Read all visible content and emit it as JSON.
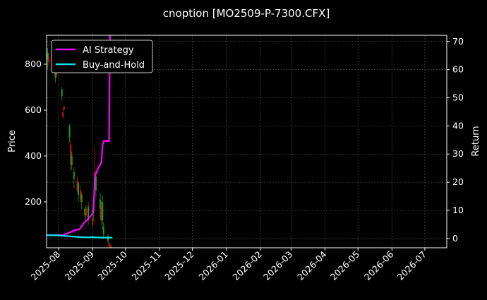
{
  "chart_data": {
    "type": "candlestick+line",
    "title": "cnoption [MO2509-P-7300.CFX]",
    "ylabel_left": "Price",
    "ylabel_right": "Return",
    "xlim": [
      "2025-07-21",
      "2026-07-21"
    ],
    "ylim_left": [
      0,
      926
    ],
    "ylim_right": [
      -3.3,
      72.2
    ],
    "x_ticks": [
      "2025-08",
      "2025-09",
      "2025-10",
      "2025-11",
      "2025-12",
      "2026-01",
      "2026-02",
      "2026-03",
      "2026-04",
      "2026-05",
      "2026-06",
      "2026-07"
    ],
    "y_ticks_left": [
      200,
      400,
      600,
      800
    ],
    "y_ticks_right": [
      0,
      10,
      20,
      30,
      40,
      50,
      60,
      70
    ],
    "grid": true,
    "legend_position": "top-left",
    "colors": {
      "up": "#1a9e1a",
      "down": "#d01010",
      "ai": "#ff00ff",
      "bh": "#00e5ee",
      "background": "#000000"
    },
    "candles": [
      [
        "2025-07-22",
        820,
        870,
        780,
        850
      ],
      [
        "2025-07-23",
        830,
        850,
        790,
        810
      ],
      [
        "2025-07-29",
        740,
        790,
        720,
        780
      ],
      [
        "2025-07-30",
        790,
        800,
        740,
        750
      ],
      [
        "2025-08-04",
        660,
        700,
        640,
        690
      ],
      [
        "2025-08-05",
        590,
        610,
        560,
        570
      ],
      [
        "2025-08-06",
        615,
        620,
        600,
        605
      ],
      [
        "2025-08-11",
        480,
        540,
        460,
        530
      ],
      [
        "2025-08-12",
        450,
        470,
        330,
        360
      ],
      [
        "2025-08-13",
        360,
        420,
        340,
        400
      ],
      [
        "2025-08-15",
        300,
        350,
        260,
        330
      ],
      [
        "2025-08-18",
        290,
        310,
        240,
        250
      ],
      [
        "2025-08-19",
        230,
        290,
        200,
        280
      ],
      [
        "2025-08-21",
        250,
        270,
        200,
        210
      ],
      [
        "2025-08-22",
        200,
        240,
        170,
        230
      ],
      [
        "2025-08-25",
        140,
        180,
        120,
        170
      ],
      [
        "2025-08-26",
        170,
        190,
        130,
        140
      ],
      [
        "2025-08-28",
        120,
        200,
        100,
        180
      ],
      [
        "2025-09-01",
        130,
        160,
        90,
        100
      ],
      [
        "2025-09-02",
        160,
        200,
        120,
        180
      ],
      [
        "2025-09-03",
        330,
        440,
        280,
        300
      ],
      [
        "2025-09-04",
        250,
        330,
        220,
        310
      ],
      [
        "2025-09-08",
        170,
        240,
        120,
        210
      ],
      [
        "2025-09-09",
        180,
        200,
        100,
        120
      ],
      [
        "2025-09-10",
        120,
        230,
        80,
        200
      ],
      [
        "2025-09-11",
        60,
        110,
        40,
        90
      ],
      [
        "2025-09-15",
        30,
        60,
        20,
        50
      ],
      [
        "2025-09-16",
        20,
        30,
        0,
        10
      ],
      [
        "2025-09-17",
        10,
        15,
        0,
        5
      ],
      [
        "2025-09-18",
        5,
        10,
        0,
        2
      ]
    ],
    "series": [
      {
        "name": "AI Strategy",
        "points": [
          [
            "2025-07-21",
            1.2
          ],
          [
            "2025-08-05",
            1.2
          ],
          [
            "2025-08-10",
            2
          ],
          [
            "2025-08-15",
            2.8
          ],
          [
            "2025-08-20",
            3.3
          ],
          [
            "2025-08-23",
            5
          ],
          [
            "2025-08-28",
            7
          ],
          [
            "2025-09-01",
            8.8
          ],
          [
            "2025-09-02",
            12
          ],
          [
            "2025-09-03",
            22
          ],
          [
            "2025-09-06",
            25
          ],
          [
            "2025-09-09",
            27
          ],
          [
            "2025-09-10",
            33
          ],
          [
            "2025-09-11",
            34.6
          ],
          [
            "2025-09-16",
            34.6
          ],
          [
            "2025-09-17",
            80
          ]
        ]
      },
      {
        "name": "Buy-and-Hold",
        "points": [
          [
            "2025-07-21",
            1.2
          ],
          [
            "2025-08-01",
            1.1
          ],
          [
            "2025-08-10",
            0.8
          ],
          [
            "2025-08-20",
            0.5
          ],
          [
            "2025-08-28",
            0.4
          ],
          [
            "2025-09-02",
            0.45
          ],
          [
            "2025-09-05",
            0.35
          ],
          [
            "2025-09-12",
            0.3
          ],
          [
            "2025-09-19",
            0.3
          ]
        ]
      }
    ]
  }
}
